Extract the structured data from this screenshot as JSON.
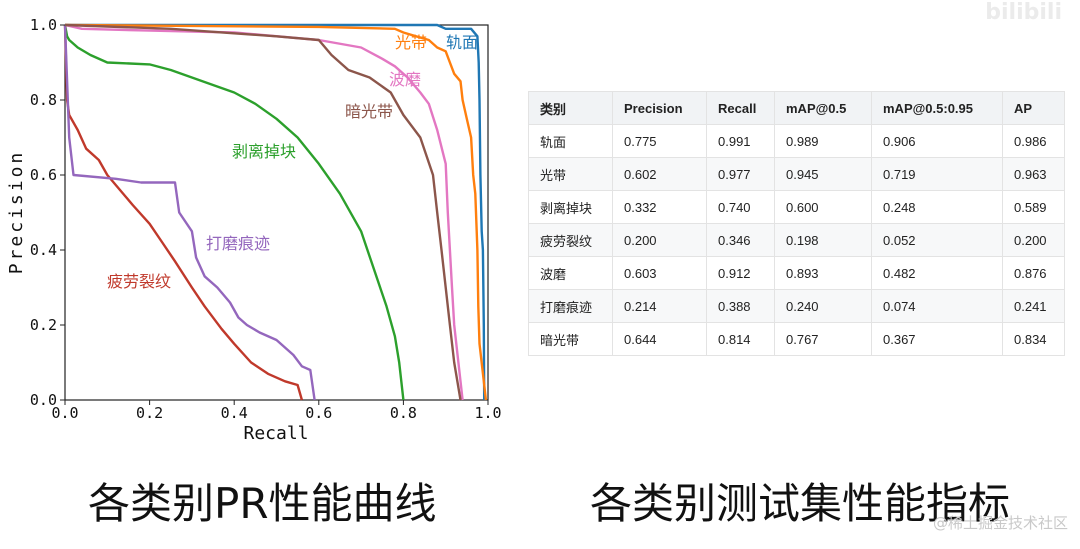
{
  "chart_data": {
    "type": "line",
    "xlabel": "Recall",
    "ylabel": "Precision",
    "xlim": [
      0,
      1
    ],
    "ylim": [
      0,
      1
    ],
    "x_ticks": [
      "0.0",
      "0.2",
      "0.4",
      "0.6",
      "0.8",
      "1.0"
    ],
    "y_ticks": [
      "0.0",
      "0.2",
      "0.4",
      "0.6",
      "0.8",
      "1.0"
    ],
    "grid": false,
    "legend": "inline labels",
    "series": [
      {
        "name": "轨面",
        "color": "#1f77b4",
        "points": [
          [
            0,
            1.0
          ],
          [
            0.5,
            1.0
          ],
          [
            0.88,
            1.0
          ],
          [
            0.9,
            0.99
          ],
          [
            0.96,
            0.99
          ],
          [
            0.975,
            0.97
          ],
          [
            0.978,
            0.9
          ],
          [
            0.98,
            0.8
          ],
          [
            0.982,
            0.6
          ],
          [
            0.985,
            0.45
          ],
          [
            0.988,
            0.4
          ],
          [
            0.99,
            0.2
          ],
          [
            0.991,
            0.0
          ]
        ]
      },
      {
        "name": "光带",
        "color": "#ff7f0e",
        "points": [
          [
            0,
            1.0
          ],
          [
            0.6,
            0.995
          ],
          [
            0.78,
            0.99
          ],
          [
            0.8,
            0.98
          ],
          [
            0.83,
            0.97
          ],
          [
            0.86,
            0.96
          ],
          [
            0.88,
            0.94
          ],
          [
            0.9,
            0.93
          ],
          [
            0.91,
            0.9
          ],
          [
            0.92,
            0.87
          ],
          [
            0.935,
            0.85
          ],
          [
            0.94,
            0.8
          ],
          [
            0.95,
            0.75
          ],
          [
            0.96,
            0.7
          ],
          [
            0.965,
            0.6
          ],
          [
            0.97,
            0.55
          ],
          [
            0.975,
            0.4
          ],
          [
            0.977,
            0.25
          ],
          [
            0.98,
            0.15
          ],
          [
            0.99,
            0.05
          ],
          [
            0.995,
            0.0
          ]
        ]
      },
      {
        "name": "剥离掉块",
        "color": "#2ca02c",
        "points": [
          [
            0,
            1.0
          ],
          [
            0.005,
            0.97
          ],
          [
            0.01,
            0.96
          ],
          [
            0.03,
            0.94
          ],
          [
            0.06,
            0.92
          ],
          [
            0.1,
            0.9
          ],
          [
            0.2,
            0.895
          ],
          [
            0.25,
            0.88
          ],
          [
            0.3,
            0.86
          ],
          [
            0.35,
            0.84
          ],
          [
            0.4,
            0.82
          ],
          [
            0.45,
            0.79
          ],
          [
            0.5,
            0.75
          ],
          [
            0.55,
            0.7
          ],
          [
            0.6,
            0.63
          ],
          [
            0.65,
            0.55
          ],
          [
            0.7,
            0.45
          ],
          [
            0.73,
            0.35
          ],
          [
            0.76,
            0.25
          ],
          [
            0.78,
            0.17
          ],
          [
            0.79,
            0.1
          ],
          [
            0.8,
            0.0
          ]
        ]
      },
      {
        "name": "疲劳裂纹",
        "color": "#c0392b",
        "points": [
          [
            0,
            1.0
          ],
          [
            0.005,
            0.8
          ],
          [
            0.01,
            0.76
          ],
          [
            0.03,
            0.72
          ],
          [
            0.05,
            0.67
          ],
          [
            0.08,
            0.64
          ],
          [
            0.1,
            0.6
          ],
          [
            0.13,
            0.56
          ],
          [
            0.16,
            0.52
          ],
          [
            0.2,
            0.47
          ],
          [
            0.23,
            0.42
          ],
          [
            0.26,
            0.37
          ],
          [
            0.3,
            0.3
          ],
          [
            0.33,
            0.25
          ],
          [
            0.37,
            0.19
          ],
          [
            0.4,
            0.15
          ],
          [
            0.44,
            0.1
          ],
          [
            0.48,
            0.07
          ],
          [
            0.52,
            0.05
          ],
          [
            0.55,
            0.04
          ],
          [
            0.56,
            0.0
          ]
        ]
      },
      {
        "name": "波磨",
        "color": "#e377c2",
        "points": [
          [
            0,
            1.0
          ],
          [
            0.04,
            0.99
          ],
          [
            0.2,
            0.985
          ],
          [
            0.4,
            0.98
          ],
          [
            0.6,
            0.96
          ],
          [
            0.7,
            0.94
          ],
          [
            0.75,
            0.91
          ],
          [
            0.78,
            0.89
          ],
          [
            0.81,
            0.86
          ],
          [
            0.84,
            0.82
          ],
          [
            0.86,
            0.79
          ],
          [
            0.88,
            0.72
          ],
          [
            0.9,
            0.63
          ],
          [
            0.905,
            0.5
          ],
          [
            0.91,
            0.4
          ],
          [
            0.915,
            0.3
          ],
          [
            0.92,
            0.2
          ],
          [
            0.93,
            0.1
          ],
          [
            0.94,
            0.0
          ]
        ]
      },
      {
        "name": "打磨痕迹",
        "color": "#9467bd",
        "points": [
          [
            0,
            1.0
          ],
          [
            0.01,
            0.7
          ],
          [
            0.02,
            0.6
          ],
          [
            0.12,
            0.59
          ],
          [
            0.18,
            0.58
          ],
          [
            0.26,
            0.58
          ],
          [
            0.27,
            0.5
          ],
          [
            0.3,
            0.45
          ],
          [
            0.31,
            0.38
          ],
          [
            0.33,
            0.33
          ],
          [
            0.36,
            0.3
          ],
          [
            0.39,
            0.26
          ],
          [
            0.41,
            0.22
          ],
          [
            0.43,
            0.2
          ],
          [
            0.46,
            0.18
          ],
          [
            0.5,
            0.16
          ],
          [
            0.54,
            0.12
          ],
          [
            0.56,
            0.09
          ],
          [
            0.58,
            0.08
          ],
          [
            0.59,
            0.0
          ]
        ]
      },
      {
        "name": "暗光带",
        "color": "#8c564b",
        "points": [
          [
            0,
            1.0
          ],
          [
            0.25,
            0.99
          ],
          [
            0.5,
            0.97
          ],
          [
            0.6,
            0.96
          ],
          [
            0.63,
            0.92
          ],
          [
            0.67,
            0.88
          ],
          [
            0.72,
            0.86
          ],
          [
            0.77,
            0.82
          ],
          [
            0.8,
            0.76
          ],
          [
            0.84,
            0.7
          ],
          [
            0.87,
            0.6
          ],
          [
            0.88,
            0.5
          ],
          [
            0.89,
            0.4
          ],
          [
            0.9,
            0.3
          ],
          [
            0.91,
            0.2
          ],
          [
            0.92,
            0.1
          ],
          [
            0.935,
            0.0
          ]
        ]
      }
    ]
  },
  "table": {
    "headers": [
      "类别",
      "Precision",
      "Recall",
      "mAP@0.5",
      "mAP@0.5:0.95",
      "AP"
    ],
    "rows": [
      [
        "轨面",
        "0.775",
        "0.991",
        "0.989",
        "0.906",
        "0.986"
      ],
      [
        "光带",
        "0.602",
        "0.977",
        "0.945",
        "0.719",
        "0.963"
      ],
      [
        "剥离掉块",
        "0.332",
        "0.740",
        "0.600",
        "0.248",
        "0.589"
      ],
      [
        "疲劳裂纹",
        "0.200",
        "0.346",
        "0.198",
        "0.052",
        "0.200"
      ],
      [
        "波磨",
        "0.603",
        "0.912",
        "0.893",
        "0.482",
        "0.876"
      ],
      [
        "打磨痕迹",
        "0.214",
        "0.388",
        "0.240",
        "0.074",
        "0.241"
      ],
      [
        "暗光带",
        "0.644",
        "0.814",
        "0.767",
        "0.367",
        "0.834"
      ]
    ]
  },
  "captions": {
    "left": "各类别PR性能曲线",
    "right": "各类别测试集性能指标"
  },
  "watermarks": {
    "top": "bilibili",
    "bottom": "@稀土掘金技术社区"
  }
}
